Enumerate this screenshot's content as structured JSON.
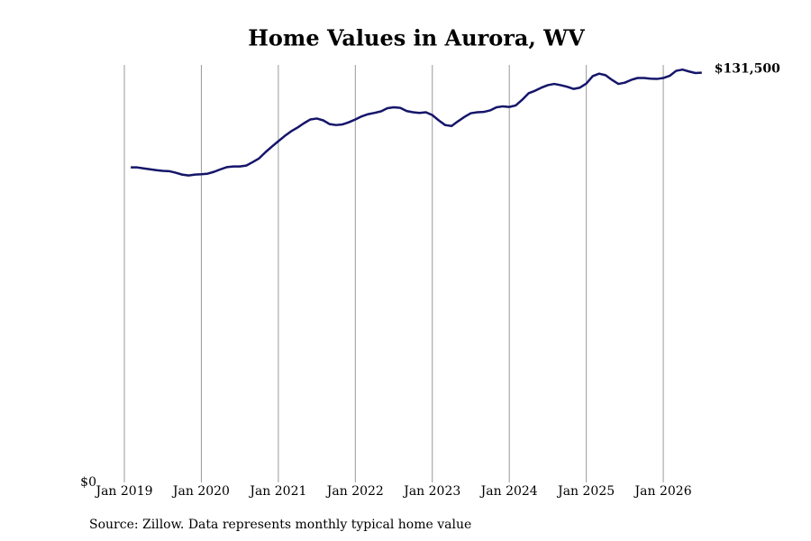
{
  "chart_data": {
    "type": "line",
    "title": "Home Values in Aurora, WV",
    "source": "Source: Zillow. Data represents monthly typical home value",
    "x": [
      "2019-02",
      "2019-03",
      "2019-04",
      "2019-05",
      "2019-06",
      "2019-07",
      "2019-08",
      "2019-09",
      "2019-10",
      "2019-11",
      "2019-12",
      "2020-01",
      "2020-02",
      "2020-03",
      "2020-04",
      "2020-05",
      "2020-06",
      "2020-07",
      "2020-08",
      "2020-09",
      "2020-10",
      "2020-11",
      "2020-12",
      "2021-01",
      "2021-02",
      "2021-03",
      "2021-04",
      "2021-05",
      "2021-06",
      "2021-07",
      "2021-08",
      "2021-09",
      "2021-10",
      "2021-11",
      "2021-12",
      "2022-01",
      "2022-02",
      "2022-03",
      "2022-04",
      "2022-05",
      "2022-06",
      "2022-07",
      "2022-08",
      "2022-09",
      "2022-10",
      "2022-11",
      "2022-12",
      "2023-01",
      "2023-02",
      "2023-03",
      "2023-04",
      "2023-05",
      "2023-06",
      "2023-07",
      "2023-08",
      "2023-09",
      "2023-10",
      "2023-11",
      "2023-12",
      "2024-01",
      "2024-02",
      "2024-03",
      "2024-04",
      "2024-05",
      "2024-06",
      "2024-07",
      "2024-08",
      "2024-09",
      "2024-10",
      "2024-11",
      "2024-12",
      "2025-01",
      "2025-02",
      "2025-03",
      "2025-04",
      "2025-05",
      "2025-06",
      "2025-07",
      "2025-08",
      "2025-09",
      "2025-10",
      "2025-11",
      "2025-12",
      "2026-01",
      "2026-02",
      "2026-03",
      "2026-04",
      "2026-05",
      "2026-06",
      "2026-07"
    ],
    "series": [
      {
        "name": "Home value",
        "color": "#15156b",
        "values": [
          101100,
          101100,
          100800,
          100500,
          100200,
          100000,
          99900,
          99400,
          98800,
          98500,
          98800,
          98900,
          99100,
          99700,
          100500,
          101200,
          101400,
          101400,
          101700,
          102800,
          104000,
          106000,
          107800,
          109500,
          111200,
          112700,
          113900,
          115300,
          116500,
          116800,
          116200,
          115000,
          114700,
          114900,
          115600,
          116500,
          117500,
          118200,
          118600,
          119100,
          120100,
          120400,
          120200,
          119200,
          118800,
          118600,
          118800,
          117900,
          116200,
          114700,
          114400,
          115900,
          117300,
          118500,
          118800,
          118900,
          119400,
          120400,
          120700,
          120500,
          121000,
          122800,
          124900,
          125700,
          126700,
          127500,
          127900,
          127500,
          127000,
          126300,
          126700,
          128000,
          130400,
          131200,
          130700,
          129200,
          127900,
          128300,
          129200,
          129800,
          129800,
          129600,
          129500,
          129800,
          130500,
          132100,
          132500,
          131900,
          131400,
          131500
        ],
        "value_labels": [
          null,
          null,
          null,
          null,
          null,
          null,
          null,
          null,
          null,
          null,
          null,
          null,
          null,
          null,
          null,
          null,
          null,
          null,
          null,
          null,
          null,
          null,
          null,
          null,
          null,
          null,
          null,
          null,
          null,
          null,
          null,
          null,
          null,
          null,
          null,
          null,
          null,
          null,
          null,
          null,
          null,
          null,
          null,
          null,
          null,
          null,
          null,
          null,
          null,
          null,
          null,
          null,
          null,
          null,
          null,
          null,
          null,
          null,
          null,
          null,
          null,
          null,
          null,
          null,
          null,
          null,
          null,
          null,
          null,
          null,
          null,
          null,
          null,
          null,
          null,
          null,
          null,
          null,
          null,
          null,
          null,
          null,
          null,
          null,
          null,
          null,
          null,
          null,
          null,
          "$131,500"
        ]
      }
    ],
    "xticks": [
      {
        "value": "2019-01",
        "label": "Jan 2019"
      },
      {
        "value": "2020-01",
        "label": "Jan 2020"
      },
      {
        "value": "2021-01",
        "label": "Jan 2021"
      },
      {
        "value": "2022-01",
        "label": "Jan 2022"
      },
      {
        "value": "2023-01",
        "label": "Jan 2023"
      },
      {
        "value": "2024-01",
        "label": "Jan 2024"
      },
      {
        "value": "2025-01",
        "label": "Jan 2025"
      },
      {
        "value": "2026-01",
        "label": "Jan 2026"
      }
    ],
    "ylim": [
      0,
      134000
    ],
    "yticks": [
      {
        "value": 0,
        "label": "$0"
      }
    ],
    "grid": true
  }
}
